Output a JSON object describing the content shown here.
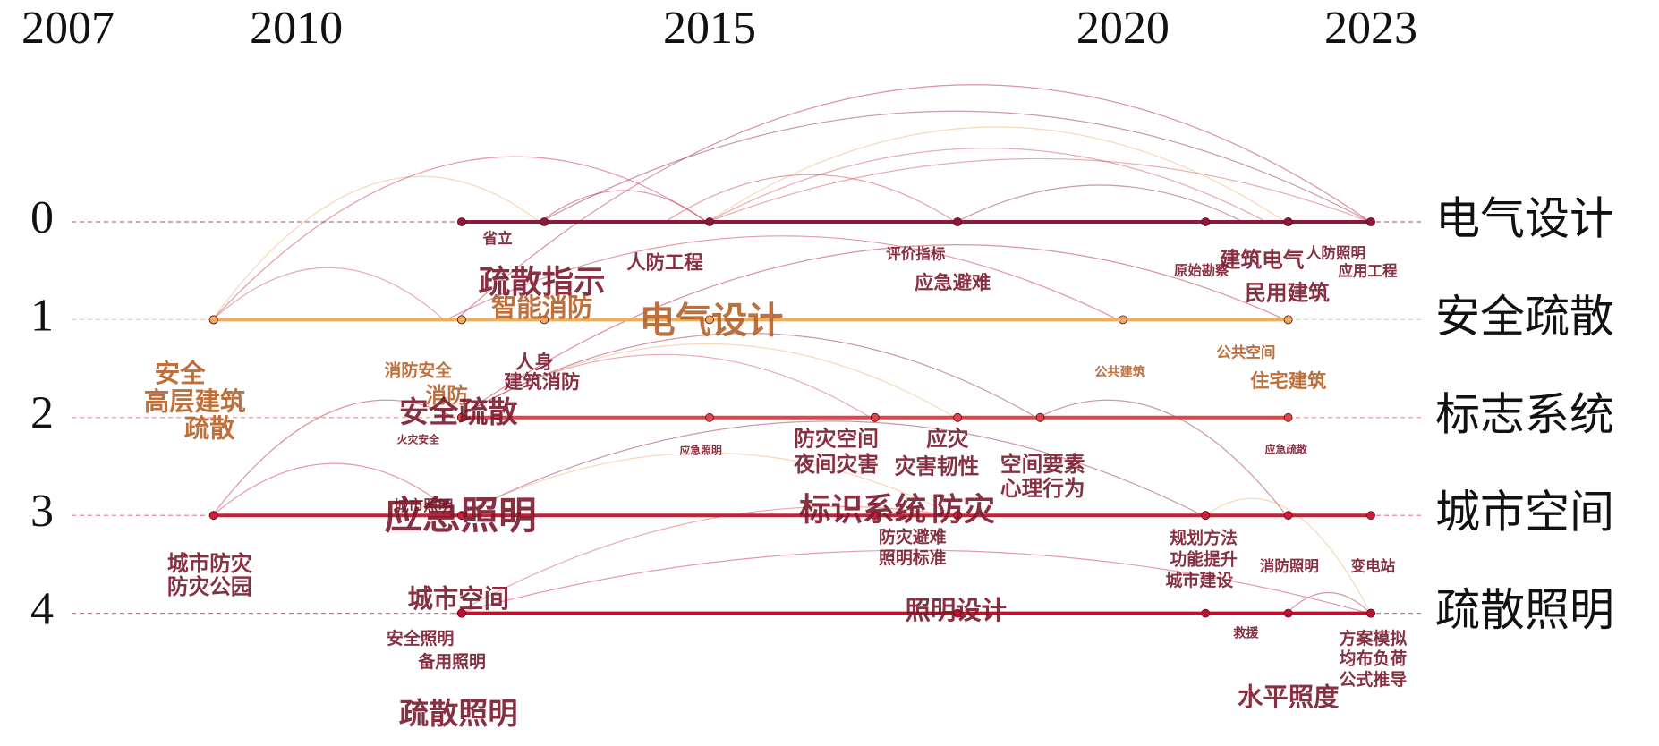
{
  "chart_data": {
    "type": "timeline",
    "xlim": [
      2007,
      2023
    ],
    "xticks": [
      2007,
      2010,
      2015,
      2020,
      2023
    ],
    "clusters": [
      {
        "number": 0,
        "name": "电气设计",
        "color": "#8b1a3a",
        "label_color": "#7a1a2e"
      },
      {
        "number": 1,
        "name": "安全疏散",
        "color": "#eab060",
        "label_color": "#b4612a"
      },
      {
        "number": 2,
        "name": "标志系统",
        "color": "#e0454a",
        "label_color": "#7a1a2e"
      },
      {
        "number": 3,
        "name": "城市空间",
        "color": "#c8203a",
        "label_color": "#7a1a2e"
      },
      {
        "number": 4,
        "name": "疏散照明",
        "color": "#c0102e",
        "label_color": "#7a1a2e"
      }
    ],
    "keywords": [
      {
        "text": "省立",
        "year": 2012,
        "cluster": 0
      },
      {
        "text": "疏散指示",
        "year": 2013,
        "cluster": 0
      },
      {
        "text": "人防工程",
        "year": 2015,
        "cluster": 0
      },
      {
        "text": "评价指标",
        "year": 2018,
        "cluster": 0
      },
      {
        "text": "应急避难",
        "year": 2018,
        "cluster": 0
      },
      {
        "text": "原始勘察",
        "year": 2021,
        "cluster": 0
      },
      {
        "text": "建筑电气",
        "year": 2022,
        "cluster": 0
      },
      {
        "text": "人防照明",
        "year": 2023,
        "cluster": 0
      },
      {
        "text": "民用建筑",
        "year": 2022,
        "cluster": 0
      },
      {
        "text": "应用工程",
        "year": 2023,
        "cluster": 0
      },
      {
        "text": "安全",
        "year": 2009,
        "cluster": 1
      },
      {
        "text": "高层建筑",
        "year": 2009,
        "cluster": 1
      },
      {
        "text": "疏散",
        "year": 2009,
        "cluster": 1
      },
      {
        "text": "消防安全",
        "year": 2012,
        "cluster": 1
      },
      {
        "text": "消防",
        "year": 2012,
        "cluster": 1
      },
      {
        "text": "智能消防",
        "year": 2013,
        "cluster": 1
      },
      {
        "text": "电气设计",
        "year": 2015,
        "cluster": 1
      },
      {
        "text": "公共建筑",
        "year": 2020,
        "cluster": 1
      },
      {
        "text": "公共空间",
        "year": 2022,
        "cluster": 1
      },
      {
        "text": "住宅建筑",
        "year": 2022,
        "cluster": 1
      },
      {
        "text": "人身",
        "year": 2012,
        "cluster": 2
      },
      {
        "text": "建筑消防",
        "year": 2012,
        "cluster": 2
      },
      {
        "text": "安全疏散",
        "year": 2012,
        "cluster": 2
      },
      {
        "text": "火灾安全",
        "year": 2012,
        "cluster": 2
      },
      {
        "text": "应急照明",
        "year": 2015,
        "cluster": 2
      },
      {
        "text": "防灾空间",
        "year": 2017,
        "cluster": 2
      },
      {
        "text": "应灾",
        "year": 2018,
        "cluster": 2
      },
      {
        "text": "夜间灾害",
        "year": 2017,
        "cluster": 2
      },
      {
        "text": "灾害韧性",
        "year": 2018,
        "cluster": 2
      },
      {
        "text": "空间要素",
        "year": 2019,
        "cluster": 2
      },
      {
        "text": "心理行为",
        "year": 2019,
        "cluster": 2
      },
      {
        "text": "应急疏散",
        "year": 2022,
        "cluster": 2
      },
      {
        "text": "城市防灾",
        "year": 2009,
        "cluster": 3
      },
      {
        "text": "防灾公园",
        "year": 2009,
        "cluster": 3
      },
      {
        "text": "城市照明",
        "year": 2012,
        "cluster": 3
      },
      {
        "text": "应急照明",
        "year": 2012,
        "cluster": 3
      },
      {
        "text": "标识系统",
        "year": 2017,
        "cluster": 3
      },
      {
        "text": "防灾",
        "year": 2018,
        "cluster": 3
      },
      {
        "text": "防灾避难",
        "year": 2018,
        "cluster": 3
      },
      {
        "text": "照明标准",
        "year": 2018,
        "cluster": 3
      },
      {
        "text": "规划方法",
        "year": 2021,
        "cluster": 3
      },
      {
        "text": "功能提升",
        "year": 2021,
        "cluster": 3
      },
      {
        "text": "城市建设",
        "year": 2021,
        "cluster": 3
      },
      {
        "text": "消防照明",
        "year": 2022,
        "cluster": 3
      },
      {
        "text": "变电站",
        "year": 2023,
        "cluster": 3
      },
      {
        "text": "城市空间",
        "year": 2012,
        "cluster": 4
      },
      {
        "text": "安全照明",
        "year": 2012,
        "cluster": 4
      },
      {
        "text": "备用照明",
        "year": 2012,
        "cluster": 4
      },
      {
        "text": "疏散照明",
        "year": 2012,
        "cluster": 4
      },
      {
        "text": "照明设计",
        "year": 2018,
        "cluster": 4
      },
      {
        "text": "救援",
        "year": 2021,
        "cluster": 4
      },
      {
        "text": "水平照度",
        "year": 2022,
        "cluster": 4
      },
      {
        "text": "方案模拟",
        "year": 2023,
        "cluster": 4
      },
      {
        "text": "均布负荷",
        "year": 2023,
        "cluster": 4
      },
      {
        "text": "公式推导",
        "year": 2023,
        "cluster": 4
      }
    ]
  }
}
